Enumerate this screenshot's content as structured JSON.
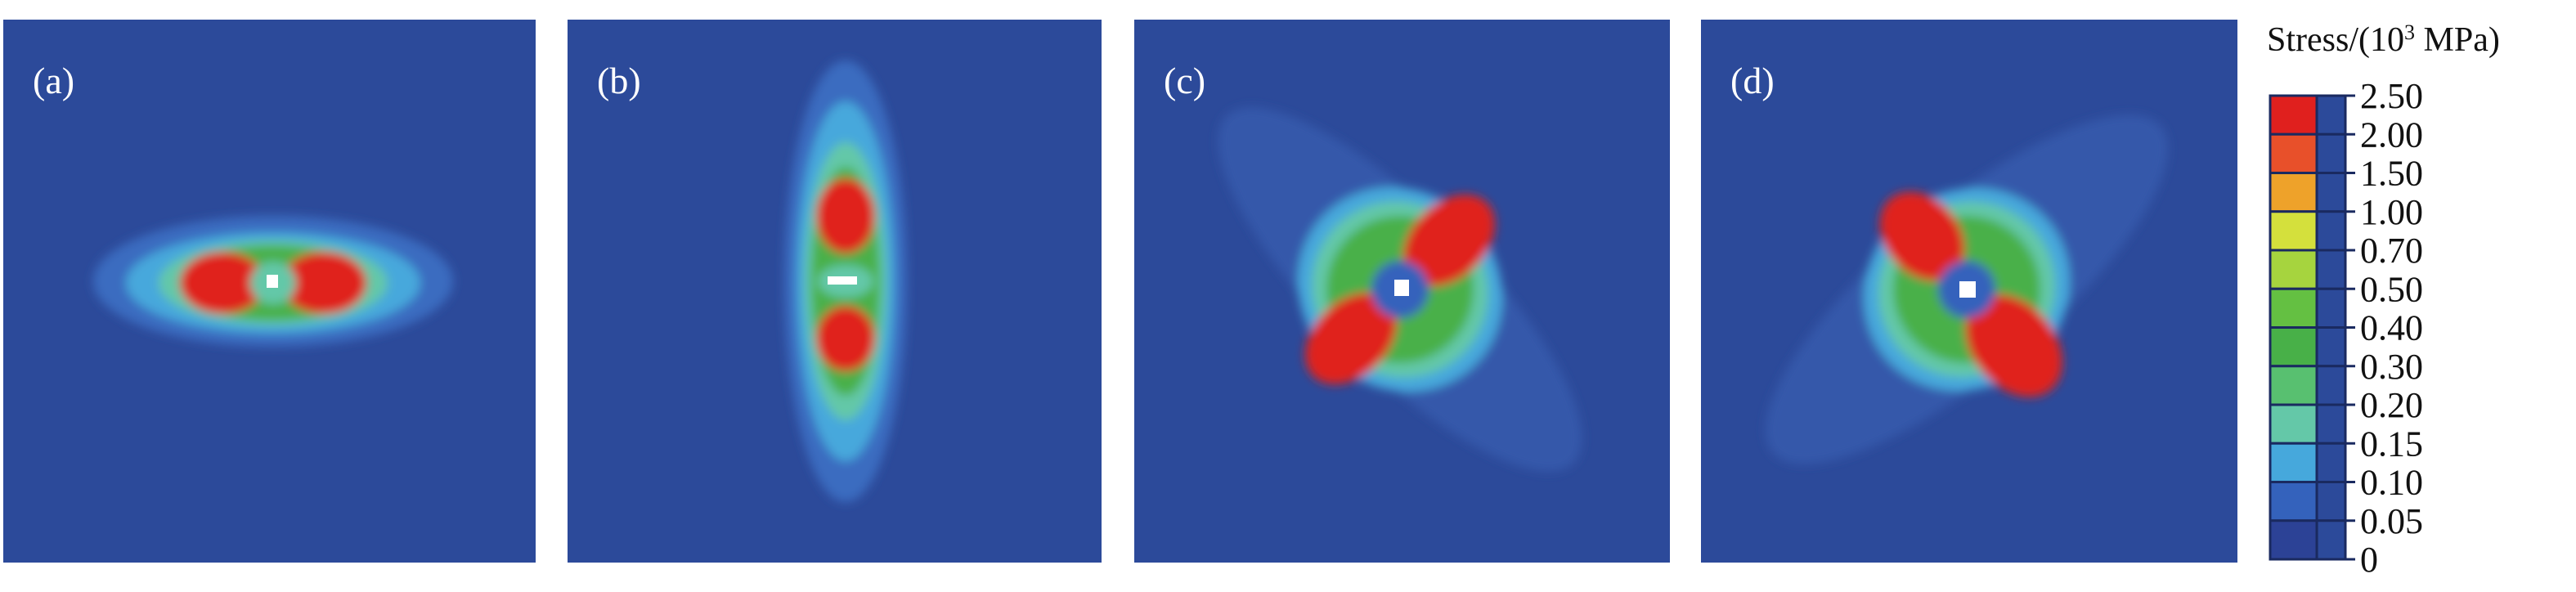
{
  "panels": [
    {
      "label": "(a)"
    },
    {
      "label": "(b)"
    },
    {
      "label": "(c)"
    },
    {
      "label": "(d)"
    }
  ],
  "legend": {
    "title": {
      "text": "Stress/(10",
      "superscript": "3",
      "unit": " MPa)"
    },
    "labels": [
      "2.50",
      "2.00",
      "1.50",
      "1.00",
      "0.70",
      "0.50",
      "0.40",
      "0.30",
      "0.20",
      "0.15",
      "0.10",
      "0.05",
      "0"
    ],
    "colors": [
      "#e0201e",
      "#e8502a",
      "#eea22a",
      "#d4e03c",
      "#a6d43e",
      "#64c042",
      "#48b048",
      "#58c070",
      "#64c8a8",
      "#46a8dc",
      "#3462bc",
      "#2c4296"
    ]
  }
}
